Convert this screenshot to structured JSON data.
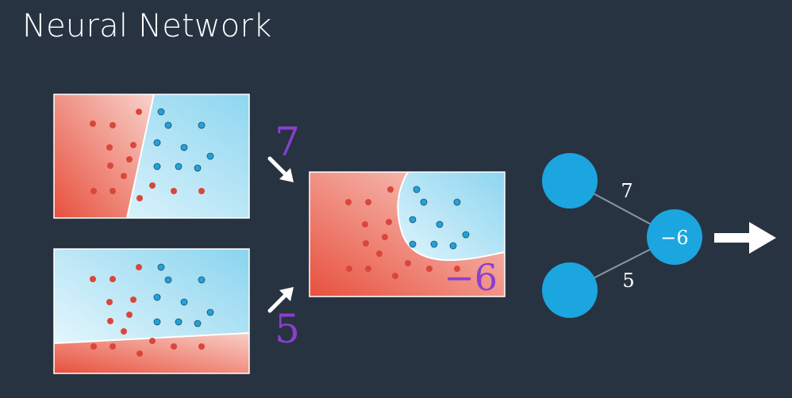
{
  "title": "Neural Network",
  "weights": {
    "top": "7",
    "bottom": "5",
    "bias": "−6"
  },
  "network": {
    "edge_top_label": "7",
    "edge_bottom_label": "5",
    "output_node_label": "−6"
  },
  "colors": {
    "background": "#283342",
    "red_region": "#e8503d",
    "blue_region": "#9fdcf2",
    "weight_text": "#8a3fcf",
    "node": "#1ba6e0",
    "white": "#ffffff"
  }
}
